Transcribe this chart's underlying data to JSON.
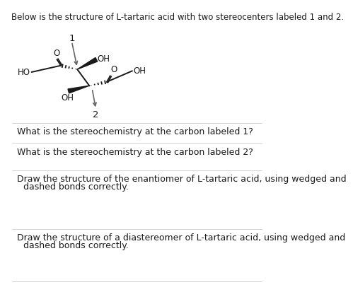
{
  "title_text": "Below is the structure of L-tartaric acid with two stereocenters labeled 1 and 2.",
  "q1_text": "What is the stereochemistry at the carbon labeled 1?",
  "q2_text": "What is the stereochemistry at the carbon labeled 2?",
  "q3_line1": "Draw the structure of the enantiomer of L-tartaric acid, using wedged and",
  "q3_line2": "dashed bonds correctly.",
  "q4_line1": "Draw the structure of a diastereomer of L-tartaric acid, using wedged and",
  "q4_line2": "dashed bonds correctly.",
  "label1": "1",
  "label2": "2",
  "bg_color": "#ffffff",
  "text_color": "#1a1a1a",
  "bond_color": "#1a1a1a",
  "title_fontsize": 8.5,
  "q_fontsize": 9.0,
  "mol_fontsize": 8.5
}
